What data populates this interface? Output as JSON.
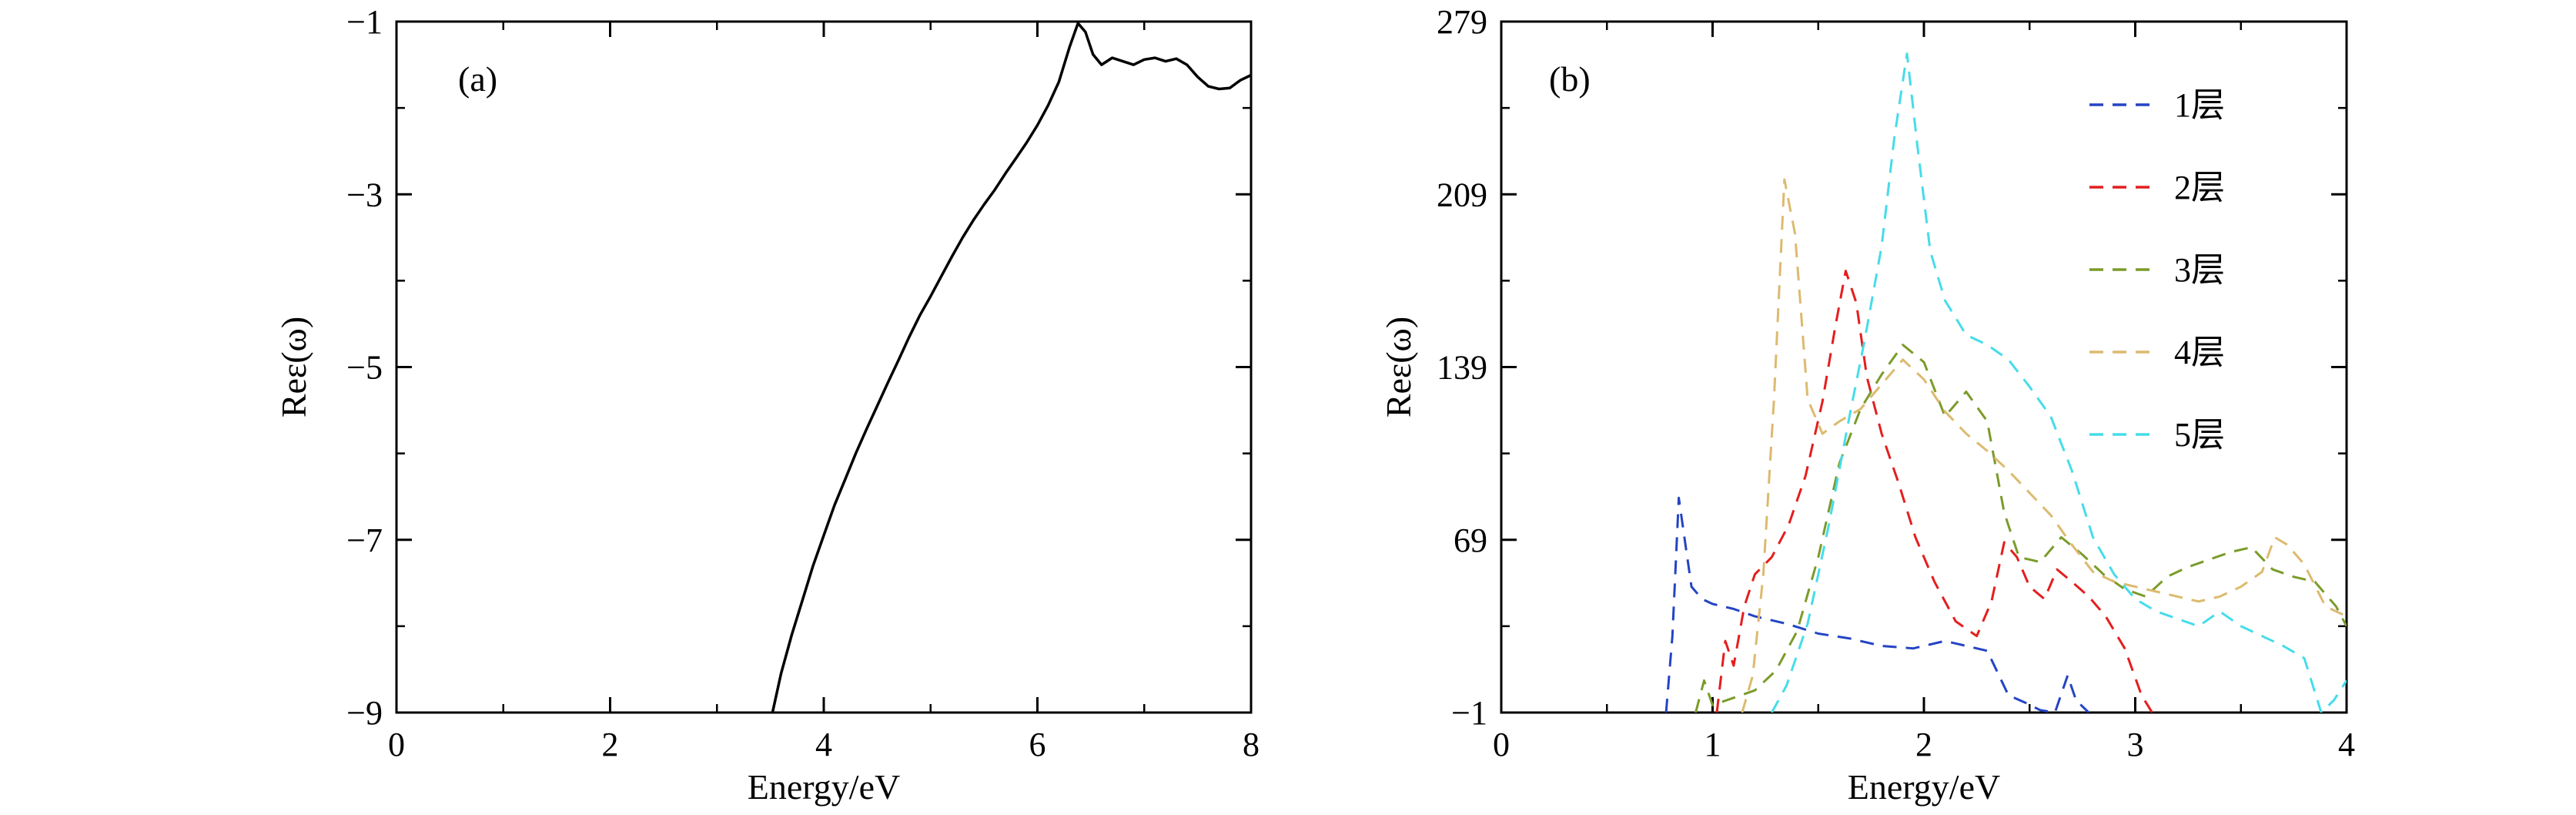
{
  "figure": {
    "background": "#ffffff",
    "axis_color": "#000000"
  },
  "chart_data": [
    {
      "id": "panel-a",
      "type": "line",
      "panel_label": "(a)",
      "title": "",
      "xlabel": "Energy/eV",
      "ylabel": "Reε(ω)",
      "xlim": [
        0,
        8
      ],
      "ylim": [
        -9,
        -1
      ],
      "xticks": [
        0,
        2,
        4,
        6,
        8
      ],
      "yticks": [
        -1,
        -3,
        -5,
        -7,
        -9
      ],
      "grid": false,
      "legend_position": "none",
      "series": [
        {
          "name": "Reε(ω)",
          "color": "#000000",
          "dash": null,
          "width": 3.5,
          "x": [
            3.52,
            3.6,
            3.7,
            3.8,
            3.9,
            4.0,
            4.1,
            4.2,
            4.3,
            4.4,
            4.5,
            4.6,
            4.7,
            4.8,
            4.9,
            5.0,
            5.1,
            5.2,
            5.3,
            5.4,
            5.5,
            5.6,
            5.7,
            5.8,
            5.9,
            6.0,
            6.1,
            6.2,
            6.3,
            6.38,
            6.45,
            6.52,
            6.6,
            6.7,
            6.8,
            6.9,
            7.0,
            7.1,
            7.2,
            7.3,
            7.4,
            7.5,
            7.6,
            7.7,
            7.8,
            7.9,
            8.0
          ],
          "y": [
            -9.0,
            -8.55,
            -8.1,
            -7.7,
            -7.3,
            -6.95,
            -6.6,
            -6.3,
            -6.0,
            -5.72,
            -5.45,
            -5.18,
            -4.92,
            -4.65,
            -4.4,
            -4.18,
            -3.95,
            -3.72,
            -3.5,
            -3.3,
            -3.12,
            -2.95,
            -2.76,
            -2.58,
            -2.4,
            -2.2,
            -1.97,
            -1.7,
            -1.3,
            -1.02,
            -1.12,
            -1.38,
            -1.5,
            -1.42,
            -1.46,
            -1.5,
            -1.44,
            -1.42,
            -1.46,
            -1.43,
            -1.5,
            -1.64,
            -1.75,
            -1.78,
            -1.77,
            -1.68,
            -1.62
          ]
        }
      ]
    },
    {
      "id": "panel-b",
      "type": "line",
      "panel_label": "(b)",
      "title": "",
      "xlabel": "Energy/eV",
      "ylabel": "Reε(ω)",
      "xlim": [
        0,
        4
      ],
      "ylim": [
        -1,
        279
      ],
      "xticks": [
        0,
        1,
        2,
        3,
        4
      ],
      "yticks": [
        -1,
        69,
        139,
        209,
        279
      ],
      "grid": false,
      "legend_position": "top-right",
      "legend": [
        "1层",
        "2层",
        "3层",
        "4层",
        "5层"
      ],
      "series": [
        {
          "name": "1层",
          "color": "#2444c4",
          "dash": "18 12",
          "width": 3,
          "x": [
            0.78,
            0.81,
            0.84,
            0.87,
            0.9,
            0.95,
            1.0,
            1.1,
            1.2,
            1.35,
            1.5,
            1.65,
            1.8,
            1.95,
            2.1,
            2.2,
            2.3,
            2.4,
            2.48,
            2.55,
            2.62,
            2.68,
            2.72,
            2.78
          ],
          "y": [
            -1,
            30,
            86,
            68,
            50,
            45,
            43,
            41,
            38,
            35,
            31,
            29,
            26,
            25,
            28,
            26,
            24,
            6,
            3,
            0,
            -1,
            14,
            4,
            -1
          ]
        },
        {
          "name": "2层",
          "color": "#e41e1e",
          "dash": "18 12",
          "width": 3,
          "x": [
            1.02,
            1.06,
            1.1,
            1.15,
            1.2,
            1.28,
            1.36,
            1.44,
            1.52,
            1.58,
            1.63,
            1.68,
            1.73,
            1.8,
            1.88,
            1.96,
            2.05,
            2.15,
            2.25,
            2.32,
            2.38,
            2.44,
            2.5,
            2.57,
            2.63,
            2.7,
            2.78,
            2.86,
            2.95,
            3.03,
            3.08
          ],
          "y": [
            -1,
            28,
            18,
            42,
            55,
            62,
            75,
            95,
            125,
            155,
            178,
            165,
            135,
            112,
            92,
            70,
            52,
            36,
            30,
            44,
            68,
            62,
            50,
            45,
            57,
            52,
            46,
            38,
            25,
            6,
            -1
          ]
        },
        {
          "name": "3层",
          "color": "#7b9b2a",
          "dash": "18 12",
          "width": 3,
          "x": [
            0.92,
            0.96,
            1.0,
            1.1,
            1.2,
            1.3,
            1.4,
            1.5,
            1.6,
            1.7,
            1.8,
            1.9,
            2.0,
            2.1,
            2.2,
            2.3,
            2.38,
            2.45,
            2.55,
            2.65,
            2.75,
            2.85,
            2.95,
            3.05,
            3.15,
            3.25,
            3.35,
            3.45,
            3.55,
            3.65,
            3.75,
            3.85,
            3.95,
            4.0
          ],
          "y": [
            -1,
            12,
            2,
            5,
            8,
            16,
            32,
            62,
            100,
            122,
            136,
            148,
            141,
            119,
            129,
            117,
            80,
            62,
            60,
            70,
            63,
            55,
            49,
            46,
            54,
            58,
            61,
            64,
            66,
            57,
            54,
            52,
            42,
            34
          ]
        },
        {
          "name": "4层",
          "color": "#dcba6e",
          "dash": "18 12",
          "width": 3,
          "x": [
            1.14,
            1.19,
            1.24,
            1.29,
            1.34,
            1.39,
            1.45,
            1.52,
            1.6,
            1.7,
            1.8,
            1.9,
            2.0,
            2.1,
            2.2,
            2.3,
            2.4,
            2.5,
            2.6,
            2.7,
            2.8,
            2.9,
            3.0,
            3.1,
            3.2,
            3.3,
            3.4,
            3.5,
            3.6,
            3.66,
            3.72,
            3.8,
            3.9,
            4.0
          ],
          "y": [
            -1,
            14,
            55,
            125,
            215,
            193,
            126,
            112,
            117,
            122,
            132,
            142,
            134,
            121,
            112,
            105,
            97,
            88,
            79,
            67,
            56,
            52,
            50,
            48,
            46,
            44,
            46,
            50,
            56,
            70,
            67,
            59,
            42,
            38
          ]
        },
        {
          "name": "5层",
          "color": "#46dcea",
          "dash": "18 12",
          "width": 3,
          "x": [
            1.28,
            1.35,
            1.45,
            1.55,
            1.65,
            1.72,
            1.8,
            1.86,
            1.92,
            1.97,
            2.03,
            2.1,
            2.2,
            2.3,
            2.4,
            2.5,
            2.6,
            2.7,
            2.8,
            2.9,
            3.0,
            3.1,
            3.2,
            3.3,
            3.4,
            3.5,
            3.6,
            3.7,
            3.8,
            3.88,
            3.94,
            4.0
          ],
          "y": [
            -1,
            10,
            35,
            75,
            120,
            150,
            188,
            232,
            266,
            228,
            186,
            166,
            152,
            148,
            142,
            131,
            119,
            97,
            70,
            55,
            45,
            40,
            37,
            34,
            40,
            34,
            30,
            26,
            21,
            -1,
            4,
            12
          ]
        }
      ]
    }
  ]
}
